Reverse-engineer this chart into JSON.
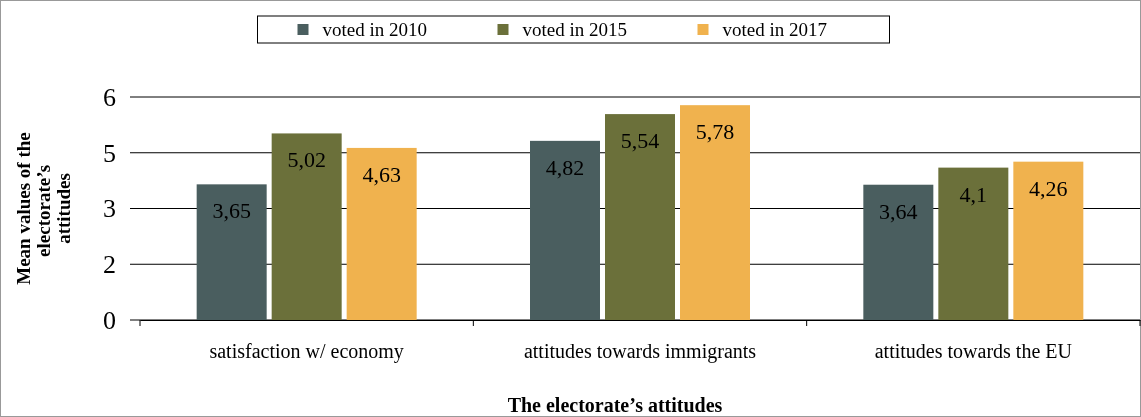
{
  "chart_data": {
    "type": "bar",
    "xlabel": "The electorate’s attitudes",
    "ylabel": "Mean values of the electorate’s  attitudes",
    "categories": [
      "satisfaction w/ economy",
      "attitudes towards immigrants",
      "attitudes towards the EU"
    ],
    "series": [
      {
        "name": "voted in 2010",
        "color": "#4a5e5f",
        "values": [
          3.65,
          4.82,
          3.64
        ],
        "value_labels": [
          "3,65",
          "4,82",
          "3,64"
        ]
      },
      {
        "name": "voted in 2015",
        "color": "#6b703a",
        "values": [
          5.02,
          5.54,
          4.1
        ],
        "value_labels": [
          "5,02",
          "5,54",
          "4,1"
        ]
      },
      {
        "name": "voted in 2017",
        "color": "#f0b24e",
        "values": [
          4.63,
          5.78,
          4.26
        ],
        "value_labels": [
          "4,63",
          "5,78",
          "4,26"
        ]
      }
    ],
    "ylim": [
      0,
      6
    ],
    "yticks": [
      0,
      {
        "value": 1.5,
        "label": "2"
      },
      {
        "value": 3,
        "label": "3"
      },
      {
        "value": 4.5,
        "label": "5"
      },
      6
    ],
    "grid": "y",
    "legend": "top"
  }
}
